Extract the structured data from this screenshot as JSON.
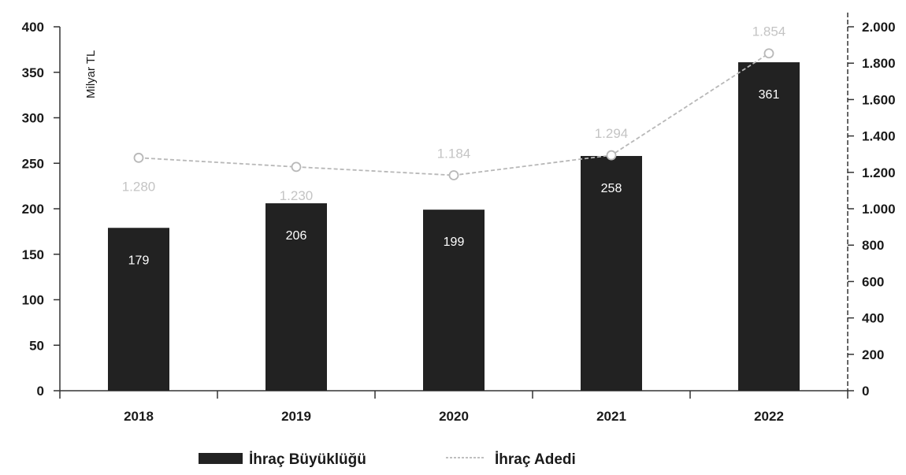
{
  "chart_data": {
    "type": "bar",
    "categories": [
      "2018",
      "2019",
      "2020",
      "2021",
      "2022"
    ],
    "ylabel": "Milyar TL",
    "ylim": [
      0,
      400
    ],
    "yticks": [
      0,
      50,
      100,
      150,
      200,
      250,
      300,
      350,
      400
    ],
    "y2lim": [
      0,
      2000
    ],
    "y2ticks": [
      0,
      200,
      400,
      600,
      800,
      1000,
      1200,
      1400,
      1600,
      1800,
      2000
    ],
    "y2tick_labels": [
      "0",
      "200",
      "400",
      "600",
      "800",
      "1.000",
      "1.200",
      "1.400",
      "1.600",
      "1.800",
      "2.000"
    ],
    "series": [
      {
        "name": "İhraç Büyüklüğü",
        "type": "bar",
        "axis": "left",
        "values": [
          179,
          206,
          199,
          258,
          361
        ],
        "labels": [
          "179",
          "206",
          "199",
          "258",
          "361"
        ],
        "color": "#222222"
      },
      {
        "name": "İhraç Adedi",
        "type": "line",
        "axis": "right",
        "values": [
          1280,
          1230,
          1184,
          1294,
          1854
        ],
        "labels": [
          "1.280",
          "1.230",
          "1.184",
          "1.294",
          "1.854"
        ],
        "color": "#b8b8b8"
      }
    ],
    "legend": "bottom",
    "grid": false
  }
}
